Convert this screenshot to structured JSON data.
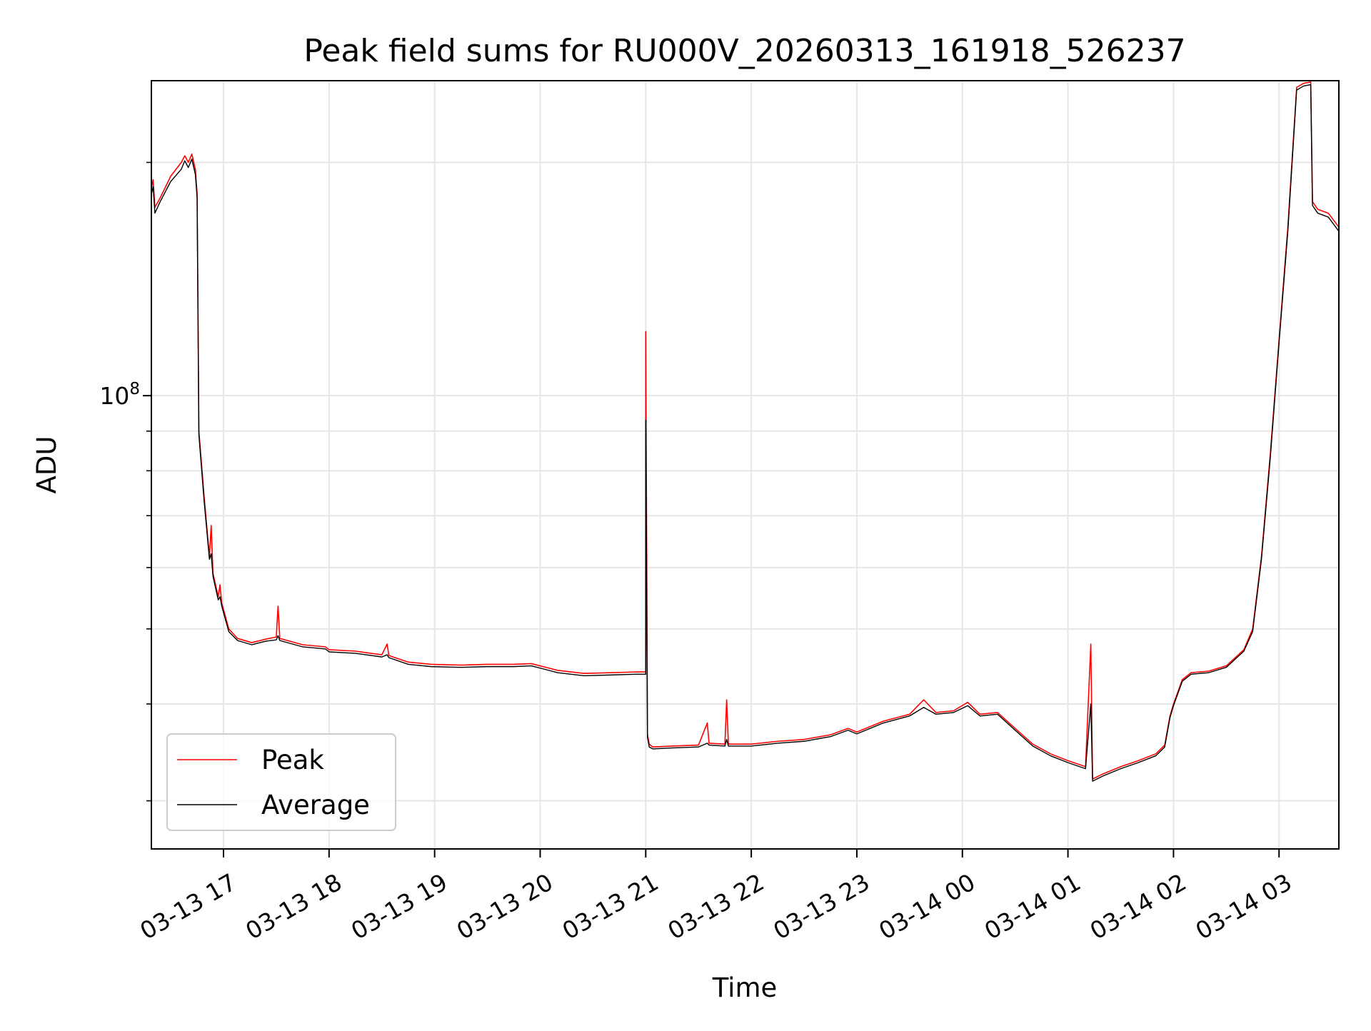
{
  "chart_data": {
    "type": "line",
    "title": "Peak field sums for RU000V_20260313_161918_526237",
    "xlabel": "Time",
    "ylabel": "ADU",
    "y_scale": "log",
    "y_major_tick_labels": [
      {
        "base": "10",
        "exponent": "8",
        "value": 100000000
      }
    ],
    "y_minor_ticks": [
      30000000.0,
      40000000.0,
      50000000.0,
      60000000.0,
      70000000.0,
      80000000.0,
      90000000.0,
      200000000.0
    ],
    "ylim": [
      26000000,
      255000000
    ],
    "xlim": [
      "2026-03-13 16:19",
      "2026-03-14 03:34"
    ],
    "x_tick_labels": [
      {
        "label": "03-13 17",
        "time": "2026-03-13 17:00"
      },
      {
        "label": "03-13 18",
        "time": "2026-03-13 18:00"
      },
      {
        "label": "03-13 19",
        "time": "2026-03-13 19:00"
      },
      {
        "label": "03-13 20",
        "time": "2026-03-13 20:00"
      },
      {
        "label": "03-13 21",
        "time": "2026-03-13 21:00"
      },
      {
        "label": "03-13 22",
        "time": "2026-03-13 22:00"
      },
      {
        "label": "03-13 23",
        "time": "2026-03-13 23:00"
      },
      {
        "label": "03-14 00",
        "time": "2026-03-14 00:00"
      },
      {
        "label": "03-14 01",
        "time": "2026-03-14 01:00"
      },
      {
        "label": "03-14 02",
        "time": "2026-03-14 02:00"
      },
      {
        "label": "03-14 03",
        "time": "2026-03-14 03:00"
      }
    ],
    "grid": true,
    "legend_position": "lower-left",
    "series": [
      {
        "name": "Peak",
        "color": "#ff0000",
        "points": [
          [
            "2026-03-13 16:19",
            185000000
          ],
          [
            "2026-03-13 16:20",
            190000000
          ],
          [
            "2026-03-13 16:21",
            175000000
          ],
          [
            "2026-03-13 16:24",
            180000000
          ],
          [
            "2026-03-13 16:30",
            192000000
          ],
          [
            "2026-03-13 16:36",
            200000000
          ],
          [
            "2026-03-13 16:38",
            204000000
          ],
          [
            "2026-03-13 16:40",
            200000000
          ],
          [
            "2026-03-13 16:42",
            205000000
          ],
          [
            "2026-03-13 16:44",
            196000000
          ],
          [
            "2026-03-13 16:45",
            182000000
          ],
          [
            "2026-03-13 16:46",
            90000000
          ],
          [
            "2026-03-13 16:49",
            74000000
          ],
          [
            "2026-03-13 16:52",
            62000000
          ],
          [
            "2026-03-13 16:53",
            68000000
          ],
          [
            "2026-03-13 16:54",
            59000000
          ],
          [
            "2026-03-13 16:57",
            55000000
          ],
          [
            "2026-03-13 16:58",
            57000000
          ],
          [
            "2026-03-13 16:59",
            54000000
          ],
          [
            "2026-03-13 17:03",
            50000000
          ],
          [
            "2026-03-13 17:08",
            48600000
          ],
          [
            "2026-03-13 17:16",
            48000000
          ],
          [
            "2026-03-13 17:24",
            48500000
          ],
          [
            "2026-03-13 17:30",
            48800000
          ],
          [
            "2026-03-13 17:31",
            53500000
          ],
          [
            "2026-03-13 17:32",
            48600000
          ],
          [
            "2026-03-13 17:45",
            47700000
          ],
          [
            "2026-03-13 17:58",
            47400000
          ],
          [
            "2026-03-13 18:00",
            47000000
          ],
          [
            "2026-03-13 18:15",
            46800000
          ],
          [
            "2026-03-13 18:30",
            46300000
          ],
          [
            "2026-03-13 18:33",
            47800000
          ],
          [
            "2026-03-13 18:34",
            46200000
          ],
          [
            "2026-03-13 18:45",
            45300000
          ],
          [
            "2026-03-13 18:58",
            45000000
          ],
          [
            "2026-03-13 19:15",
            44900000
          ],
          [
            "2026-03-13 19:30",
            45000000
          ],
          [
            "2026-03-13 19:45",
            45000000
          ],
          [
            "2026-03-13 19:55",
            45100000
          ],
          [
            "2026-03-13 20:10",
            44200000
          ],
          [
            "2026-03-13 20:25",
            43800000
          ],
          [
            "2026-03-13 20:40",
            43900000
          ],
          [
            "2026-03-13 20:55",
            44000000
          ],
          [
            "2026-03-13 21:00",
            44000000
          ],
          [
            "2026-03-13 21:00",
            121000000
          ],
          [
            "2026-03-13 21:01",
            36500000
          ],
          [
            "2026-03-13 21:02",
            35500000
          ],
          [
            "2026-03-13 21:04",
            35200000
          ],
          [
            "2026-03-13 21:15",
            35300000
          ],
          [
            "2026-03-13 21:30",
            35400000
          ],
          [
            "2026-03-13 21:35",
            37800000
          ],
          [
            "2026-03-13 21:36",
            35600000
          ],
          [
            "2026-03-13 21:45",
            35500000
          ],
          [
            "2026-03-13 21:46",
            40500000
          ],
          [
            "2026-03-13 21:47",
            35500000
          ],
          [
            "2026-03-13 22:00",
            35500000
          ],
          [
            "2026-03-13 22:15",
            35800000
          ],
          [
            "2026-03-13 22:30",
            36000000
          ],
          [
            "2026-03-13 22:45",
            36500000
          ],
          [
            "2026-03-13 22:55",
            37200000
          ],
          [
            "2026-03-13 23:00",
            36800000
          ],
          [
            "2026-03-13 23:15",
            38000000
          ],
          [
            "2026-03-13 23:30",
            38800000
          ],
          [
            "2026-03-13 23:38",
            40500000
          ],
          [
            "2026-03-13 23:45",
            39000000
          ],
          [
            "2026-03-13 23:55",
            39200000
          ],
          [
            "2026-03-14 00:03",
            40200000
          ],
          [
            "2026-03-14 00:10",
            38800000
          ],
          [
            "2026-03-14 00:20",
            39000000
          ],
          [
            "2026-03-14 00:30",
            37200000
          ],
          [
            "2026-03-14 00:40",
            35500000
          ],
          [
            "2026-03-14 00:50",
            34500000
          ],
          [
            "2026-03-14 01:00",
            33800000
          ],
          [
            "2026-03-14 01:10",
            33200000
          ],
          [
            "2026-03-14 01:13",
            47800000
          ],
          [
            "2026-03-14 01:14",
            32000000
          ],
          [
            "2026-03-14 01:20",
            32500000
          ],
          [
            "2026-03-14 01:30",
            33200000
          ],
          [
            "2026-03-14 01:40",
            33800000
          ],
          [
            "2026-03-14 01:50",
            34500000
          ],
          [
            "2026-03-14 01:55",
            35400000
          ],
          [
            "2026-03-14 01:58",
            38600000
          ],
          [
            "2026-03-14 02:00",
            40000000
          ],
          [
            "2026-03-14 02:05",
            43000000
          ],
          [
            "2026-03-14 02:10",
            43900000
          ],
          [
            "2026-03-14 02:20",
            44100000
          ],
          [
            "2026-03-14 02:30",
            44800000
          ],
          [
            "2026-03-14 02:40",
            47000000
          ],
          [
            "2026-03-14 02:45",
            50000000
          ],
          [
            "2026-03-14 02:50",
            62000000
          ],
          [
            "2026-03-14 02:55",
            84000000
          ],
          [
            "2026-03-14 03:00",
            118000000
          ],
          [
            "2026-03-14 03:05",
            165000000
          ],
          [
            "2026-03-14 03:10",
            250000000
          ],
          [
            "2026-03-14 03:14",
            253000000
          ],
          [
            "2026-03-14 03:18",
            254000000
          ],
          [
            "2026-03-14 03:19",
            178000000
          ],
          [
            "2026-03-14 03:22",
            174000000
          ],
          [
            "2026-03-14 03:28",
            172000000
          ],
          [
            "2026-03-14 03:34",
            165000000
          ]
        ]
      },
      {
        "name": "Average",
        "color": "#000000",
        "points": [
          [
            "2026-03-13 16:19",
            182000000
          ],
          [
            "2026-03-13 16:20",
            186000000
          ],
          [
            "2026-03-13 16:21",
            172000000
          ],
          [
            "2026-03-13 16:24",
            178000000
          ],
          [
            "2026-03-13 16:30",
            189000000
          ],
          [
            "2026-03-13 16:36",
            196000000
          ],
          [
            "2026-03-13 16:38",
            201000000
          ],
          [
            "2026-03-13 16:40",
            197000000
          ],
          [
            "2026-03-13 16:42",
            202000000
          ],
          [
            "2026-03-13 16:44",
            193000000
          ],
          [
            "2026-03-13 16:45",
            180000000
          ],
          [
            "2026-03-13 16:46",
            89000000
          ],
          [
            "2026-03-13 16:49",
            73000000
          ],
          [
            "2026-03-13 16:52",
            61500000
          ],
          [
            "2026-03-13 16:53",
            62500000
          ],
          [
            "2026-03-13 16:54",
            58500000
          ],
          [
            "2026-03-13 16:57",
            54500000
          ],
          [
            "2026-03-13 16:58",
            55000000
          ],
          [
            "2026-03-13 16:59",
            53500000
          ],
          [
            "2026-03-13 17:03",
            49600000
          ],
          [
            "2026-03-13 17:08",
            48300000
          ],
          [
            "2026-03-13 17:16",
            47700000
          ],
          [
            "2026-03-13 17:24",
            48200000
          ],
          [
            "2026-03-13 17:30",
            48400000
          ],
          [
            "2026-03-13 17:31",
            49000000
          ],
          [
            "2026-03-13 17:32",
            48300000
          ],
          [
            "2026-03-13 17:45",
            47400000
          ],
          [
            "2026-03-13 17:58",
            47100000
          ],
          [
            "2026-03-13 18:00",
            46700000
          ],
          [
            "2026-03-13 18:15",
            46500000
          ],
          [
            "2026-03-13 18:30",
            46000000
          ],
          [
            "2026-03-13 18:33",
            46300000
          ],
          [
            "2026-03-13 18:34",
            45900000
          ],
          [
            "2026-03-13 18:45",
            45000000
          ],
          [
            "2026-03-13 18:58",
            44700000
          ],
          [
            "2026-03-13 19:15",
            44600000
          ],
          [
            "2026-03-13 19:30",
            44700000
          ],
          [
            "2026-03-13 19:45",
            44700000
          ],
          [
            "2026-03-13 19:55",
            44800000
          ],
          [
            "2026-03-13 20:10",
            43900000
          ],
          [
            "2026-03-13 20:25",
            43500000
          ],
          [
            "2026-03-13 20:40",
            43600000
          ],
          [
            "2026-03-13 20:55",
            43700000
          ],
          [
            "2026-03-13 21:00",
            43700000
          ],
          [
            "2026-03-13 21:00",
            93000000
          ],
          [
            "2026-03-13 21:01",
            36200000
          ],
          [
            "2026-03-13 21:02",
            35200000
          ],
          [
            "2026-03-13 21:04",
            35000000
          ],
          [
            "2026-03-13 21:15",
            35100000
          ],
          [
            "2026-03-13 21:30",
            35200000
          ],
          [
            "2026-03-13 21:35",
            35600000
          ],
          [
            "2026-03-13 21:36",
            35400000
          ],
          [
            "2026-03-13 21:45",
            35300000
          ],
          [
            "2026-03-13 21:46",
            36000000
          ],
          [
            "2026-03-13 21:47",
            35300000
          ],
          [
            "2026-03-13 22:00",
            35300000
          ],
          [
            "2026-03-13 22:15",
            35600000
          ],
          [
            "2026-03-13 22:30",
            35800000
          ],
          [
            "2026-03-13 22:45",
            36300000
          ],
          [
            "2026-03-13 22:55",
            37000000
          ],
          [
            "2026-03-13 23:00",
            36600000
          ],
          [
            "2026-03-13 23:15",
            37800000
          ],
          [
            "2026-03-13 23:30",
            38600000
          ],
          [
            "2026-03-13 23:38",
            39600000
          ],
          [
            "2026-03-13 23:45",
            38800000
          ],
          [
            "2026-03-13 23:55",
            39000000
          ],
          [
            "2026-03-14 00:03",
            39800000
          ],
          [
            "2026-03-14 00:10",
            38600000
          ],
          [
            "2026-03-14 00:20",
            38800000
          ],
          [
            "2026-03-14 00:30",
            37000000
          ],
          [
            "2026-03-14 00:40",
            35300000
          ],
          [
            "2026-03-14 00:50",
            34300000
          ],
          [
            "2026-03-14 01:00",
            33600000
          ],
          [
            "2026-03-14 01:10",
            33000000
          ],
          [
            "2026-03-14 01:13",
            40000000
          ],
          [
            "2026-03-14 01:14",
            31800000
          ],
          [
            "2026-03-14 01:20",
            32300000
          ],
          [
            "2026-03-14 01:30",
            33000000
          ],
          [
            "2026-03-14 01:40",
            33600000
          ],
          [
            "2026-03-14 01:50",
            34300000
          ],
          [
            "2026-03-14 01:55",
            35200000
          ],
          [
            "2026-03-14 01:58",
            38400000
          ],
          [
            "2026-03-14 02:00",
            39800000
          ],
          [
            "2026-03-14 02:05",
            42800000
          ],
          [
            "2026-03-14 02:10",
            43700000
          ],
          [
            "2026-03-14 02:20",
            43900000
          ],
          [
            "2026-03-14 02:30",
            44600000
          ],
          [
            "2026-03-14 02:40",
            46800000
          ],
          [
            "2026-03-14 02:45",
            49600000
          ],
          [
            "2026-03-14 02:50",
            61500000
          ],
          [
            "2026-03-14 02:55",
            83000000
          ],
          [
            "2026-03-14 03:00",
            117000000
          ],
          [
            "2026-03-14 03:05",
            163000000
          ],
          [
            "2026-03-14 03:10",
            248000000
          ],
          [
            "2026-03-14 03:14",
            251000000
          ],
          [
            "2026-03-14 03:18",
            252000000
          ],
          [
            "2026-03-14 03:19",
            176000000
          ],
          [
            "2026-03-14 03:22",
            172000000
          ],
          [
            "2026-03-14 03:28",
            170000000
          ],
          [
            "2026-03-14 03:34",
            163000000
          ]
        ]
      }
    ]
  }
}
